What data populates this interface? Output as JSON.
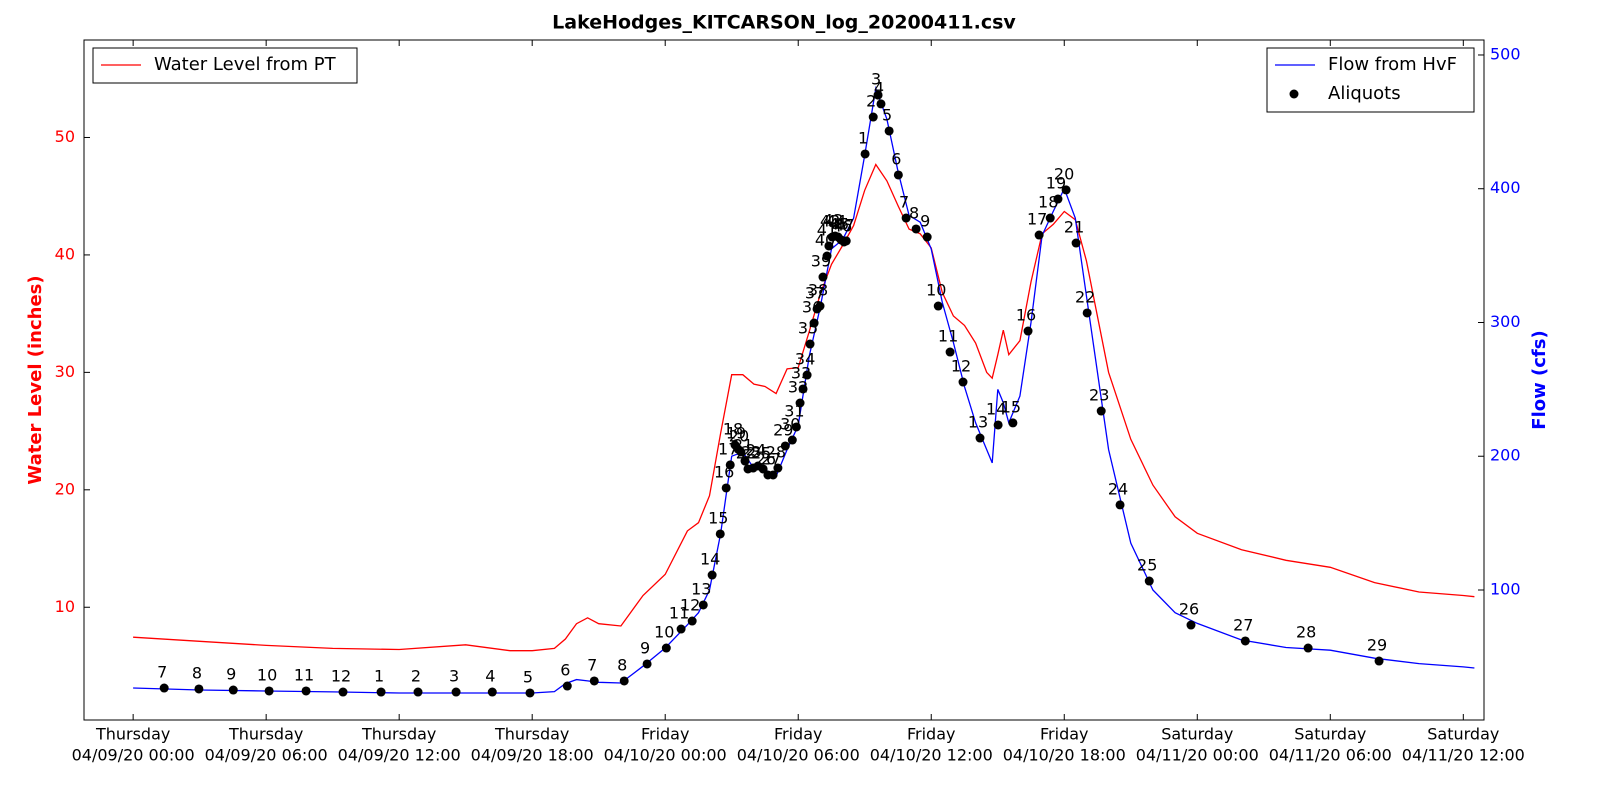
{
  "chart_data": {
    "type": "line",
    "title": "LakeHodges_KITCARSON_log_20200411.csv",
    "ylabel": "Water Level (inches)",
    "y2label": "Flow (cfs)",
    "ylabel_color": "#ff0000",
    "y2label_color": "#0000ff",
    "xlim": [
      "04/08/20 21:47",
      "04/11/20 12:56"
    ],
    "ylim": [
      0.4,
      58.3
    ],
    "y2lim": [
      2.8,
      511.2
    ],
    "yticks": [
      10,
      20,
      30,
      40,
      50
    ],
    "y2ticks": [
      100,
      200,
      300,
      400,
      500
    ],
    "xticks": [
      {
        "value": "04/09/20 00:00",
        "label": [
          "Thursday",
          "04/09/20 00:00"
        ]
      },
      {
        "value": "04/09/20 06:00",
        "label": [
          "Thursday",
          "04/09/20 06:00"
        ]
      },
      {
        "value": "04/09/20 12:00",
        "label": [
          "Thursday",
          "04/09/20 12:00"
        ]
      },
      {
        "value": "04/09/20 18:00",
        "label": [
          "Thursday",
          "04/09/20 18:00"
        ]
      },
      {
        "value": "04/10/20 00:00",
        "label": [
          "Friday",
          "04/10/20 00:00"
        ]
      },
      {
        "value": "04/10/20 06:00",
        "label": [
          "Friday",
          "04/10/20 06:00"
        ]
      },
      {
        "value": "04/10/20 12:00",
        "label": [
          "Friday",
          "04/10/20 12:00"
        ]
      },
      {
        "value": "04/10/20 18:00",
        "label": [
          "Friday",
          "04/10/20 18:00"
        ]
      },
      {
        "value": "04/11/20 00:00",
        "label": [
          "Saturday",
          "04/11/20 00:00"
        ]
      },
      {
        "value": "04/11/20 06:00",
        "label": [
          "Saturday",
          "04/11/20 06:00"
        ]
      },
      {
        "value": "04/11/20 12:00",
        "label": [
          "Saturday",
          "04/11/20 12:00"
        ]
      }
    ],
    "x": [
      "04/09/20 00:00",
      "04/09/20 03:00",
      "04/09/20 06:00",
      "04/09/20 09:00",
      "04/09/20 12:00",
      "04/09/20 15:00",
      "04/09/20 17:00",
      "04/09/20 18:00",
      "04/09/20 19:00",
      "04/09/20 19:30",
      "04/09/20 20:00",
      "04/09/20 20:30",
      "04/09/20 21:00",
      "04/09/20 22:00",
      "04/09/20 23:00",
      "04/10/20 00:00",
      "04/10/20 01:00",
      "04/10/20 01:30",
      "04/10/20 02:00",
      "04/10/20 02:30",
      "04/10/20 03:00",
      "04/10/20 03:30",
      "04/10/20 04:00",
      "04/10/20 04:30",
      "04/10/20 05:00",
      "04/10/20 05:30",
      "04/10/20 06:00",
      "04/10/20 06:30",
      "04/10/20 07:00",
      "04/10/20 07:30",
      "04/10/20 08:00",
      "04/10/20 08:30",
      "04/10/20 09:00",
      "04/10/20 09:30",
      "04/10/20 10:00",
      "04/10/20 10:30",
      "04/10/20 11:00",
      "04/10/20 11:30",
      "04/10/20 12:00",
      "04/10/20 12:30",
      "04/10/20 13:00",
      "04/10/20 13:30",
      "04/10/20 14:00",
      "04/10/20 14:30",
      "04/10/20 14:45",
      "04/10/20 15:00",
      "04/10/20 15:15",
      "04/10/20 15:30",
      "04/10/20 16:00",
      "04/10/20 16:30",
      "04/10/20 17:00",
      "04/10/20 17:30",
      "04/10/20 18:00",
      "04/10/20 18:30",
      "04/10/20 19:00",
      "04/10/20 20:00",
      "04/10/20 21:00",
      "04/10/20 22:00",
      "04/10/20 23:00",
      "04/11/20 00:00",
      "04/11/20 02:00",
      "04/11/20 04:00",
      "04/11/20 06:00",
      "04/11/20 08:00",
      "04/11/20 10:00",
      "04/11/20 12:00",
      "04/11/20 12:30"
    ],
    "series": [
      {
        "name": "Water Level from PT",
        "color": "#ff0000",
        "axis": "y",
        "legend": "upper left",
        "values": [
          7.45,
          7.1,
          6.75,
          6.5,
          6.4,
          6.8,
          6.3,
          6.3,
          6.5,
          7.3,
          8.6,
          9.1,
          8.6,
          8.4,
          11.0,
          12.8,
          16.5,
          17.2,
          19.5,
          24.8,
          29.8,
          29.8,
          29.0,
          28.8,
          28.2,
          30.3,
          30.4,
          33.5,
          36.7,
          39.2,
          40.8,
          42.5,
          45.5,
          47.7,
          46.3,
          44.2,
          42.2,
          41.8,
          40.6,
          36.8,
          34.8,
          34.0,
          32.5,
          30.0,
          29.5,
          31.5,
          33.6,
          31.5,
          32.7,
          37.7,
          41.8,
          42.6,
          43.7,
          43.0,
          39.5,
          30.0,
          24.3,
          20.4,
          17.7,
          16.3,
          14.9,
          14.0,
          13.4,
          12.1,
          11.3,
          11.0,
          10.9
        ]
      },
      {
        "name": "Flow from HvF",
        "color": "#0000ff",
        "axis": "y2",
        "legend": "upper right",
        "values": [
          26.7,
          25.2,
          24.5,
          23.8,
          23,
          23,
          23,
          23,
          24,
          30,
          33,
          32,
          31,
          30.5,
          43,
          56.6,
          74,
          83,
          100,
          142,
          200,
          203,
          191,
          190,
          185,
          205,
          223,
          275,
          312,
          355,
          362,
          378,
          425,
          475,
          452,
          413,
          380,
          375,
          355,
          315,
          285,
          252,
          225,
          205,
          195,
          250,
          240,
          225,
          245,
          300,
          365,
          383,
          400,
          378,
          320,
          205,
          135,
          100,
          83,
          75,
          62.6,
          57,
          55,
          49,
          45,
          42.5,
          41.7
        ]
      },
      {
        "name": "Aliquots",
        "color": "#000000",
        "axis": "y2",
        "legend": "upper right",
        "type": "scatter",
        "x": [
          "04/09/20 01:24",
          "04/09/20 02:58",
          "04/09/20 04:31",
          "04/09/20 06:08",
          "04/09/20 07:48",
          "04/09/20 09:28",
          "04/09/20 11:11",
          "04/09/20 12:51",
          "04/09/20 14:34",
          "04/09/20 16:12",
          "04/09/20 17:54",
          "04/09/20 19:35",
          "04/09/20 20:48",
          "04/09/20 22:09",
          "04/09/20 23:11",
          "04/10/20 00:03",
          "04/10/20 00:43",
          "04/10/20 01:13",
          "04/10/20 01:43",
          "04/10/20 02:07",
          "04/10/20 02:29",
          "04/10/20 02:45",
          "04/10/20 02:56",
          "04/10/20 03:09",
          "04/10/20 03:17",
          "04/10/20 03:25",
          "04/10/20 03:36",
          "04/10/20 03:44",
          "04/10/20 03:58",
          "04/10/20 04:11",
          "04/10/20 04:25",
          "04/10/20 04:38",
          "04/10/20 04:52",
          "04/10/20 05:05",
          "04/10/20 05:25",
          "04/10/20 05:44",
          "04/10/20 05:55",
          "04/10/20 06:05",
          "04/10/20 06:13",
          "04/10/20 06:24",
          "04/10/20 06:32",
          "04/10/20 06:43",
          "04/10/20 06:51",
          "04/10/20 06:59",
          "04/10/20 07:07",
          "04/10/20 07:18",
          "04/10/20 07:23",
          "04/10/20 07:32",
          "04/10/20 07:40",
          "04/10/20 07:48",
          "04/10/20 07:56",
          "04/10/20 08:04",
          "04/10/20 08:10",
          "04/10/20 09:01",
          "04/10/20 09:23",
          "04/10/20 09:36",
          "04/10/20 09:44",
          "04/10/20 10:06",
          "04/10/20 10:31",
          "04/10/20 10:52",
          "04/10/20 11:19",
          "04/10/20 11:49",
          "04/10/20 12:19",
          "04/10/20 12:51",
          "04/10/20 13:26",
          "04/10/20 14:12",
          "04/10/20 15:01",
          "04/10/20 15:41",
          "04/10/20 16:22",
          "04/10/20 16:52",
          "04/10/20 17:22",
          "04/10/20 17:43",
          "04/10/20 18:05",
          "04/10/20 18:32",
          "04/10/20 19:02",
          "04/10/20 19:40",
          "04/10/20 20:31",
          "04/10/20 21:50",
          "04/10/20 23:43",
          "04/11/20 02:10",
          "04/11/20 05:00",
          "04/11/20 08:12"
        ],
        "values": [
          26.7,
          26,
          25.2,
          24.5,
          24.5,
          23.7,
          23.7,
          23.7,
          23.7,
          23.7,
          23,
          28.2,
          32,
          32,
          44.7,
          56.6,
          70.8,
          76.8,
          88.8,
          111.2,
          141.9,
          176.3,
          193.5,
          208.4,
          205.4,
          203.2,
          196.4,
          190.5,
          191.2,
          192.7,
          190.5,
          186,
          186,
          191.2,
          207.7,
          212.1,
          221.9,
          239.8,
          250.3,
          260.7,
          283.9,
          299.6,
          310.1,
          312.3,
          334,
          349.7,
          357.2,
          363.9,
          364.7,
          363.9,
          361.7,
          360.2,
          361,
          426,
          453.6,
          470,
          463.4,
          443.2,
          410.3,
          378.1,
          369.9,
          363.9,
          312.3,
          277.9,
          255.5,
          213.6,
          223.4,
          224.9,
          293.6,
          365.4,
          378.1,
          392.3,
          399.1,
          359.4,
          307.1,
          233.8,
          163.6,
          106.7,
          73.8,
          61.9,
          56.6,
          46.9
        ],
        "labels": [
          7,
          8,
          9,
          10,
          11,
          12,
          1,
          2,
          3,
          4,
          5,
          6,
          7,
          8,
          9,
          10,
          11,
          12,
          13,
          14,
          15,
          16,
          17,
          18,
          19,
          20,
          21,
          22,
          23,
          24,
          25,
          26,
          27,
          28,
          29,
          30,
          31,
          32,
          33,
          34,
          35,
          36,
          37,
          38,
          39,
          40,
          41,
          42,
          43,
          44,
          45,
          46,
          47,
          1,
          2,
          3,
          4,
          5,
          6,
          7,
          8,
          9,
          10,
          11,
          12,
          13,
          14,
          15,
          16,
          17,
          18,
          19,
          20,
          21,
          22,
          23,
          24,
          25,
          26,
          27,
          28,
          29
        ]
      }
    ]
  }
}
